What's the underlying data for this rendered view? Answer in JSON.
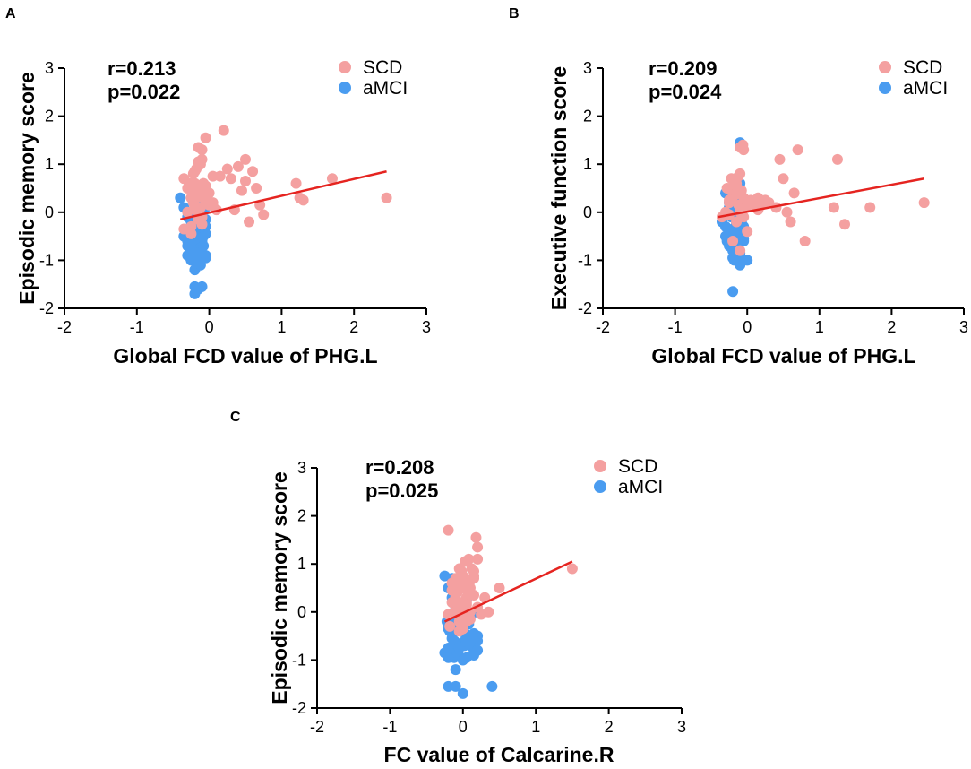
{
  "chart_data": [
    {
      "panel": "A",
      "type": "scatter",
      "xlabel": "Global FCD value of PHG.L",
      "ylabel": "Episodic memory score",
      "xlim": [
        -2,
        3
      ],
      "ylim": [
        -2,
        3
      ],
      "xticks": [
        -2,
        -1,
        0,
        1,
        2,
        3
      ],
      "yticks": [
        -2,
        -1,
        0,
        1,
        2,
        3
      ],
      "stats": {
        "r": "r=0.213",
        "p": "p=0.022"
      },
      "legend": [
        {
          "label": "SCD",
          "color": "#f4a0a0"
        },
        {
          "label": "aMCI",
          "color": "#4a9cf0"
        }
      ],
      "regression": {
        "x": [
          -0.4,
          2.45
        ],
        "y": [
          -0.15,
          0.85
        ],
        "color": "#e52420"
      },
      "series": [
        {
          "name": "aMCI",
          "color": "#4a9cf0",
          "x": [
            -0.4,
            -0.35,
            -0.3,
            -0.25,
            -0.2,
            -0.15,
            -0.1,
            -0.05,
            -0.32,
            -0.28,
            -0.22,
            -0.18,
            -0.12,
            -0.08,
            -0.3,
            -0.25,
            -0.2,
            -0.15,
            -0.1,
            -0.3,
            -0.22,
            -0.15,
            -0.08,
            -0.25,
            -0.18,
            -0.1,
            -0.3,
            -0.2,
            -0.12,
            -0.05,
            -0.25,
            -0.15,
            -0.08,
            -0.2,
            -0.12,
            -0.25,
            -0.15,
            -0.05,
            -0.18,
            -0.1,
            -0.2,
            -0.12,
            -0.05,
            -0.2,
            -0.15,
            -0.1,
            -0.2,
            -0.15,
            -0.05,
            -0.25,
            -0.2,
            -0.1,
            -0.15,
            -0.05,
            -0.35,
            -0.25,
            -0.15,
            -0.3,
            -0.2
          ],
          "y": [
            0.3,
            0.1,
            -0.1,
            -0.3,
            -0.5,
            -0.2,
            0.0,
            0.1,
            -0.4,
            -0.6,
            -0.7,
            -0.8,
            -0.5,
            -0.3,
            -0.9,
            -0.2,
            -0.4,
            -0.6,
            -0.7,
            -0.5,
            -0.3,
            -0.1,
            -0.5,
            -0.8,
            -0.9,
            -0.6,
            -0.7,
            -0.4,
            -0.2,
            -0.9,
            -1.0,
            -0.8,
            -0.7,
            -0.55,
            -0.45,
            -0.65,
            -0.35,
            -0.15,
            -1.0,
            -0.95,
            -1.2,
            -1.1,
            -0.95,
            -1.55,
            -1.6,
            -1.55,
            -1.7,
            -0.25,
            -0.45,
            0.0,
            0.2,
            0.15,
            -0.15,
            -0.3,
            -0.5,
            -0.75,
            -0.85,
            -0.6,
            -0.4
          ]
        },
        {
          "name": "SCD",
          "color": "#f4a0a0",
          "x": [
            -0.35,
            -0.3,
            -0.25,
            -0.2,
            -0.15,
            -0.1,
            -0.05,
            0.0,
            -0.28,
            -0.22,
            -0.18,
            -0.12,
            -0.08,
            -0.3,
            -0.22,
            -0.15,
            -0.08,
            -0.2,
            -0.12,
            -0.15,
            -0.1,
            -0.18,
            -0.12,
            -0.1,
            -0.15,
            -0.05,
            -0.2,
            -0.1,
            0.05,
            0.0,
            0.1,
            0.15,
            0.2,
            0.25,
            0.3,
            0.35,
            0.4,
            0.45,
            0.5,
            0.5,
            0.55,
            0.6,
            0.65,
            0.7,
            0.75,
            1.2,
            1.25,
            1.3,
            1.7,
            2.45,
            -0.25,
            -0.15,
            -0.05,
            -0.35,
            -0.2,
            -0.1,
            0.05,
            -0.25,
            -0.05
          ],
          "y": [
            0.7,
            0.5,
            0.3,
            0.1,
            0.0,
            -0.1,
            0.2,
            0.4,
            0.6,
            0.8,
            0.9,
            0.5,
            0.3,
            0.0,
            0.2,
            0.4,
            0.6,
            0.85,
            1.0,
            1.05,
            1.1,
            0.3,
            0.1,
            1.3,
            1.35,
            1.55,
            0.6,
            0.45,
            0.2,
            0.15,
            0.05,
            0.75,
            1.7,
            0.9,
            0.7,
            0.05,
            0.95,
            0.45,
            1.1,
            0.65,
            -0.2,
            0.85,
            0.5,
            0.15,
            -0.05,
            0.6,
            0.3,
            0.25,
            0.7,
            0.3,
            -0.3,
            -0.15,
            0.25,
            -0.35,
            0.4,
            -0.25,
            0.75,
            -0.45,
            0.55
          ]
        }
      ]
    },
    {
      "panel": "B",
      "type": "scatter",
      "xlabel": "Global FCD value of PHG.L",
      "ylabel": "Executive function score",
      "xlim": [
        -2,
        3
      ],
      "ylim": [
        -2,
        3
      ],
      "xticks": [
        -2,
        -1,
        0,
        1,
        2,
        3
      ],
      "yticks": [
        -2,
        -1,
        0,
        1,
        2,
        3
      ],
      "stats": {
        "r": "r=0.209",
        "p": "p=0.024"
      },
      "legend": [
        {
          "label": "SCD",
          "color": "#f4a0a0"
        },
        {
          "label": "aMCI",
          "color": "#4a9cf0"
        }
      ],
      "regression": {
        "x": [
          -0.4,
          2.45
        ],
        "y": [
          -0.1,
          0.7
        ],
        "color": "#e52420"
      },
      "series": [
        {
          "name": "aMCI",
          "color": "#4a9cf0",
          "x": [
            -0.3,
            -0.25,
            -0.2,
            -0.15,
            -0.1,
            -0.05,
            -0.3,
            -0.22,
            -0.18,
            -0.12,
            -0.08,
            -0.02,
            -0.28,
            -0.2,
            -0.15,
            -0.1,
            -0.05,
            -0.25,
            -0.18,
            -0.12,
            -0.06,
            -0.22,
            -0.15,
            -0.1,
            -0.2,
            -0.12,
            -0.05,
            -0.18,
            -0.1,
            -0.25,
            -0.15,
            -0.08,
            -0.2,
            -0.12,
            -0.05,
            -0.15,
            -0.1,
            -0.2,
            -0.1,
            -0.05,
            -0.15,
            -0.05,
            0.0,
            -0.2,
            -0.1,
            -0.15,
            -0.1,
            -0.35,
            -0.3,
            -0.25
          ],
          "y": [
            0.4,
            0.2,
            0.0,
            -0.2,
            -0.4,
            -0.6,
            -0.3,
            -0.5,
            -0.7,
            -0.9,
            -0.2,
            0.1,
            -0.6,
            -0.8,
            -1.0,
            -1.05,
            -0.55,
            0.1,
            0.3,
            0.5,
            -0.3,
            -0.1,
            -0.6,
            -0.85,
            -0.95,
            -0.75,
            -0.45,
            -1.0,
            -1.1,
            -0.4,
            -0.25,
            0.0,
            -0.35,
            -0.15,
            0.25,
            0.35,
            0.6,
            -0.65,
            -0.5,
            -0.3,
            -0.45,
            -1.0,
            -1.0,
            -1.65,
            1.45,
            -0.15,
            0.05,
            -0.2,
            -0.5,
            -0.7
          ]
        },
        {
          "name": "SCD",
          "color": "#f4a0a0",
          "x": [
            -0.35,
            -0.3,
            -0.25,
            -0.2,
            -0.15,
            -0.1,
            -0.05,
            0.0,
            -0.28,
            -0.22,
            -0.18,
            -0.12,
            -0.08,
            -0.02,
            -0.25,
            -0.18,
            -0.12,
            -0.06,
            -0.22,
            -0.15,
            -0.1,
            -0.05,
            0.05,
            0.1,
            0.15,
            0.2,
            0.25,
            0.3,
            0.4,
            0.45,
            0.5,
            0.55,
            0.6,
            0.65,
            0.7,
            0.8,
            1.2,
            1.25,
            1.35,
            1.7,
            2.45,
            -0.15,
            -0.1,
            0.0,
            -0.05,
            -0.2,
            -0.1,
            0.05,
            0.15,
            -0.25
          ],
          "y": [
            -0.1,
            0.0,
            0.2,
            0.4,
            0.6,
            0.8,
            0.3,
            0.1,
            0.5,
            0.7,
            0.35,
            0.15,
            0.45,
            0.25,
            -0.05,
            0.65,
            0.75,
            1.4,
            0.25,
            0.55,
            1.35,
            1.3,
            0.25,
            0.2,
            0.3,
            0.15,
            0.25,
            0.2,
            0.1,
            1.1,
            0.7,
            0.0,
            -0.2,
            0.4,
            1.3,
            -0.6,
            0.1,
            1.1,
            -0.25,
            0.1,
            0.2,
            -0.2,
            0.0,
            -0.4,
            -0.1,
            -0.6,
            -0.8,
            0.15,
            0.05,
            0.25
          ]
        }
      ]
    },
    {
      "panel": "C",
      "type": "scatter",
      "xlabel": "FC value of Calcarine.R",
      "ylabel": "Episodic memory score",
      "xlim": [
        -2,
        3
      ],
      "ylim": [
        -2,
        3
      ],
      "xticks": [
        -2,
        -1,
        0,
        1,
        2,
        3
      ],
      "yticks": [
        -2,
        -1,
        0,
        1,
        2,
        3
      ],
      "stats": {
        "r": "r=0.208",
        "p": "p=0.025"
      },
      "legend": [
        {
          "label": "SCD",
          "color": "#f4a0a0"
        },
        {
          "label": "aMCI",
          "color": "#4a9cf0"
        }
      ],
      "regression": {
        "x": [
          -0.25,
          1.5
        ],
        "y": [
          -0.2,
          1.05
        ],
        "color": "#e52420"
      },
      "series": [
        {
          "name": "aMCI",
          "color": "#4a9cf0",
          "x": [
            -0.25,
            -0.2,
            -0.15,
            -0.1,
            -0.05,
            0.0,
            0.05,
            0.1,
            0.15,
            0.2,
            -0.22,
            -0.18,
            -0.12,
            -0.08,
            -0.02,
            0.03,
            0.08,
            0.12,
            -0.2,
            -0.15,
            -0.1,
            -0.05,
            0.0,
            0.05,
            0.1,
            -0.18,
            -0.12,
            -0.06,
            0.02,
            0.06,
            -0.15,
            -0.08,
            0.0,
            0.04,
            -0.1,
            -0.05,
            0.0,
            0.15,
            0.2,
            -0.2,
            -0.1,
            0.0,
            0.05,
            0.1,
            0.15,
            0.2,
            -0.2,
            -0.1,
            0.0,
            0.4,
            -0.25,
            -0.2,
            -0.15
          ],
          "y": [
            0.75,
            0.5,
            0.3,
            0.1,
            -0.1,
            -0.3,
            -0.5,
            -0.7,
            -0.9,
            -0.5,
            -0.2,
            -0.4,
            -0.6,
            -0.8,
            -0.65,
            -0.45,
            -0.25,
            -0.05,
            -0.75,
            -0.55,
            -0.35,
            -0.15,
            0.05,
            0.25,
            -0.6,
            -0.85,
            -0.95,
            -0.9,
            -0.7,
            -0.5,
            -0.2,
            0.0,
            -0.35,
            -0.55,
            -0.65,
            -0.75,
            -1.0,
            -0.85,
            -0.6,
            -0.35,
            -1.2,
            -1.0,
            -0.95,
            -0.6,
            -0.45,
            -0.8,
            -1.55,
            -1.55,
            -1.7,
            -1.55,
            -0.85,
            -0.95,
            0.7
          ]
        },
        {
          "name": "SCD",
          "color": "#f4a0a0",
          "x": [
            -0.2,
            -0.15,
            -0.1,
            -0.05,
            0.0,
            0.05,
            0.1,
            0.15,
            0.2,
            -0.18,
            -0.12,
            -0.08,
            -0.02,
            0.03,
            0.08,
            0.12,
            0.18,
            -0.15,
            -0.1,
            -0.05,
            0.0,
            0.05,
            0.1,
            0.15,
            -0.1,
            -0.05,
            0.0,
            0.05,
            0.1,
            0.15,
            0.2,
            0.25,
            0.3,
            0.35,
            0.5,
            1.5,
            -0.05,
            0.0,
            0.05,
            -0.1,
            0.0,
            0.1,
            0.2,
            -0.2,
            -0.05,
            0.05,
            0.15,
            0.0,
            -0.15
          ],
          "y": [
            1.7,
            0.6,
            0.3,
            0.1,
            -0.1,
            0.2,
            0.5,
            0.75,
            1.1,
            -0.3,
            0.0,
            0.4,
            0.85,
            1.05,
            1.1,
            0.9,
            1.55,
            0.2,
            0.7,
            0.9,
            0.55,
            0.3,
            0.65,
            0.7,
            0.0,
            -0.2,
            -0.35,
            0.15,
            0.0,
            0.35,
            0.1,
            -0.05,
            0.3,
            0.0,
            0.5,
            0.9,
            0.6,
            0.75,
            0.45,
            0.3,
            0.05,
            -0.15,
            1.35,
            -0.05,
            -0.4,
            -0.2,
            0.85,
            0.2,
            0.45
          ]
        }
      ]
    }
  ]
}
